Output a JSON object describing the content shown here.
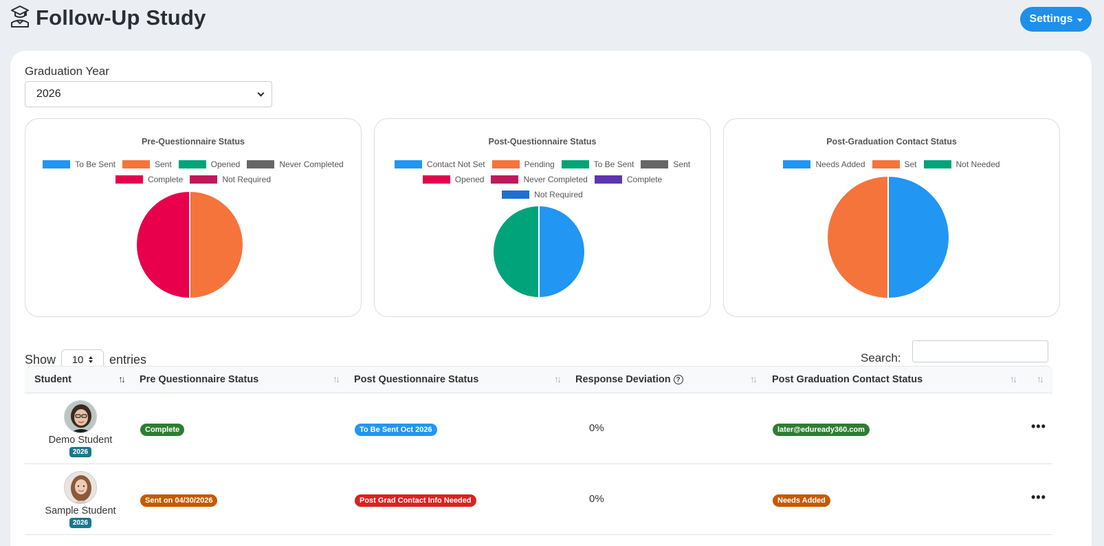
{
  "header": {
    "title": "Follow-Up Study",
    "title_icon": "graduation-cap-icon",
    "settings_label": "Settings"
  },
  "filters": {
    "grad_year_label": "Graduation Year",
    "grad_year_value": "2026"
  },
  "charts": [
    {
      "title": "Pre-Questionnaire Status",
      "legend": [
        {
          "label": "To Be Sent",
          "color": "#2196f3"
        },
        {
          "label": "Sent",
          "color": "#f4743b"
        },
        {
          "label": "Opened",
          "color": "#00a37a"
        },
        {
          "label": "Never Completed",
          "color": "#666666"
        },
        {
          "label": "Complete",
          "color": "#e8004d"
        },
        {
          "label": "Not Required",
          "color": "#c2185b"
        }
      ]
    },
    {
      "title": "Post-Questionnaire Status",
      "legend": [
        {
          "label": "Contact Not Set",
          "color": "#2196f3"
        },
        {
          "label": "Pending",
          "color": "#f4743b"
        },
        {
          "label": "To Be Sent",
          "color": "#00a37a"
        },
        {
          "label": "Sent",
          "color": "#666666"
        },
        {
          "label": "Opened",
          "color": "#e8004d"
        },
        {
          "label": "Never Completed",
          "color": "#c2185b"
        },
        {
          "label": "Complete",
          "color": "#5e35b1"
        },
        {
          "label": "Not Required",
          "color": "#1e6fd0"
        }
      ]
    },
    {
      "title": "Post-Graduation Contact Status",
      "legend": [
        {
          "label": "Needs Added",
          "color": "#2196f3"
        },
        {
          "label": "Set",
          "color": "#f4743b"
        },
        {
          "label": "Not Needed",
          "color": "#00a37a"
        }
      ]
    }
  ],
  "chart_data": [
    {
      "type": "pie",
      "title": "Pre-Questionnaire Status",
      "categories": [
        "To Be Sent",
        "Sent",
        "Opened",
        "Never Completed",
        "Complete",
        "Not Required"
      ],
      "values": [
        0,
        1,
        0,
        0,
        1,
        0
      ],
      "colors": [
        "#2196f3",
        "#f4743b",
        "#00a37a",
        "#666666",
        "#e8004d",
        "#c2185b"
      ],
      "legend_position": "top"
    },
    {
      "type": "pie",
      "title": "Post-Questionnaire Status",
      "categories": [
        "Contact Not Set",
        "Pending",
        "To Be Sent",
        "Sent",
        "Opened",
        "Never Completed",
        "Complete",
        "Not Required"
      ],
      "values": [
        1,
        0,
        1,
        0,
        0,
        0,
        0,
        0
      ],
      "colors": [
        "#2196f3",
        "#f4743b",
        "#00a37a",
        "#666666",
        "#e8004d",
        "#c2185b",
        "#5e35b1",
        "#1e6fd0"
      ],
      "legend_position": "top"
    },
    {
      "type": "pie",
      "title": "Post-Graduation Contact Status",
      "categories": [
        "Needs Added",
        "Set",
        "Not Needed"
      ],
      "values": [
        1,
        1,
        0
      ],
      "colors": [
        "#2196f3",
        "#f4743b",
        "#00a37a"
      ],
      "legend_position": "top"
    }
  ],
  "table": {
    "show_label": "Show",
    "entries_label": "entries",
    "page_length": "10",
    "search_label": "Search:",
    "search_value": "",
    "columns": [
      "Student",
      "Pre Questionnaire Status",
      "Post Questionnaire Status",
      "Response Deviation",
      "Post Graduation Contact Status"
    ],
    "rows": [
      {
        "name": "Demo Student",
        "year": "2026",
        "pre": {
          "text": "Complete",
          "color": "#2e7d32"
        },
        "post": {
          "text": "To Be Sent Oct 2026",
          "color": "#2196f3"
        },
        "deviation": "0%",
        "contact": {
          "text": "later@eduready360.com",
          "color": "#2e7d32"
        }
      },
      {
        "name": "Sample Student",
        "year": "2026",
        "pre": {
          "text": "Sent on 04/30/2026",
          "color": "#c65a00"
        },
        "post": {
          "text": "Post Grad Contact Info Needed",
          "color": "#e01f1f"
        },
        "deviation": "0%",
        "contact": {
          "text": "Needs Added",
          "color": "#c65a00"
        }
      }
    ]
  }
}
